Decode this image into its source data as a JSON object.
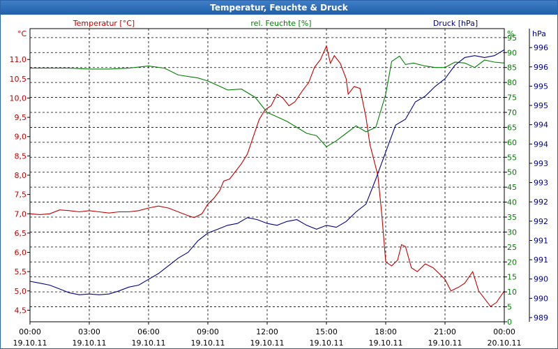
{
  "window": {
    "title": "Temperatur, Feuchte & Druck"
  },
  "chart_data": {
    "type": "line",
    "title": "Temperatur, Feuchte & Druck",
    "grid": true,
    "x_ticks": [
      {
        "time": "00:00",
        "date": "19.10.11"
      },
      {
        "time": "03:00",
        "date": "19.10.11"
      },
      {
        "time": "06:00",
        "date": "19.10.11"
      },
      {
        "time": "09:00",
        "date": "19.10.11"
      },
      {
        "time": "12:00",
        "date": "19.10.11"
      },
      {
        "time": "15:00",
        "date": "19.10.11"
      },
      {
        "time": "18:00",
        "date": "19.10.11"
      },
      {
        "time": "21:00",
        "date": "19.10.11"
      },
      {
        "time": "00:00",
        "date": "20.10.11"
      }
    ],
    "x_range_hours": [
      0,
      24
    ],
    "axes": {
      "temperature": {
        "unit": "°C",
        "label": "Temperatur [°C]",
        "range": [
          4.2,
          11.8
        ],
        "ticks": [
          "4,5",
          "5,0",
          "5,5",
          "6,0",
          "6,5",
          "7,0",
          "7,5",
          "8,0",
          "8,5",
          "9,0",
          "9,5",
          "10,0",
          "10,5",
          "11,0"
        ],
        "color": "#c00000"
      },
      "humidity": {
        "unit": "%",
        "label": "rel. Feuchte [%]",
        "range": [
          0,
          98
        ],
        "ticks": [
          "0",
          "5",
          "10",
          "15",
          "20",
          "25",
          "30",
          "35",
          "40",
          "45",
          "50",
          "55",
          "60",
          "65",
          "70",
          "75",
          "80",
          "85",
          "90",
          "95"
        ],
        "color": "#008000"
      },
      "pressure": {
        "unit": "hPa",
        "label": "Druck [hPa]",
        "range": [
          989.0,
          996.6
        ],
        "ticks": [
          "989",
          "990",
          "990",
          "991",
          "991",
          "992",
          "992",
          "993",
          "993",
          "994",
          "994",
          "995",
          "995",
          "996",
          "996"
        ],
        "color": "#00008b"
      }
    },
    "series": [
      {
        "name": "Temperatur [°C]",
        "axis": "temperature",
        "color": "#c00000",
        "points": [
          [
            0,
            7.0
          ],
          [
            0.5,
            6.98
          ],
          [
            1,
            7.0
          ],
          [
            1.5,
            7.1
          ],
          [
            2,
            7.08
          ],
          [
            2.5,
            7.05
          ],
          [
            3,
            7.08
          ],
          [
            3.5,
            7.05
          ],
          [
            4,
            7.02
          ],
          [
            4.5,
            7.05
          ],
          [
            5,
            7.05
          ],
          [
            5.5,
            7.08
          ],
          [
            6,
            7.15
          ],
          [
            6.5,
            7.2
          ],
          [
            7,
            7.15
          ],
          [
            7.5,
            7.05
          ],
          [
            8,
            6.95
          ],
          [
            8.3,
            6.9
          ],
          [
            8.7,
            7.0
          ],
          [
            9,
            7.25
          ],
          [
            9.3,
            7.4
          ],
          [
            9.6,
            7.6
          ],
          [
            9.8,
            7.85
          ],
          [
            10.1,
            7.9
          ],
          [
            10.4,
            8.1
          ],
          [
            10.7,
            8.3
          ],
          [
            11,
            8.55
          ],
          [
            11.3,
            9.0
          ],
          [
            11.6,
            9.45
          ],
          [
            11.9,
            9.7
          ],
          [
            12.2,
            9.8
          ],
          [
            12.5,
            10.1
          ],
          [
            12.8,
            10.0
          ],
          [
            13.1,
            9.8
          ],
          [
            13.4,
            9.9
          ],
          [
            13.8,
            10.2
          ],
          [
            14.1,
            10.4
          ],
          [
            14.4,
            10.8
          ],
          [
            14.7,
            11.0
          ],
          [
            15.0,
            11.35
          ],
          [
            15.2,
            10.9
          ],
          [
            15.4,
            11.1
          ],
          [
            15.7,
            10.9
          ],
          [
            16.0,
            10.5
          ],
          [
            16.1,
            10.1
          ],
          [
            16.4,
            10.3
          ],
          [
            16.7,
            10.25
          ],
          [
            17.0,
            9.5
          ],
          [
            17.2,
            8.8
          ],
          [
            17.4,
            8.4
          ],
          [
            17.6,
            8.0
          ],
          [
            17.8,
            7.0
          ],
          [
            18.0,
            5.75
          ],
          [
            18.3,
            5.65
          ],
          [
            18.6,
            5.8
          ],
          [
            18.8,
            6.2
          ],
          [
            19.0,
            6.15
          ],
          [
            19.3,
            5.6
          ],
          [
            19.6,
            5.5
          ],
          [
            20.0,
            5.7
          ],
          [
            20.4,
            5.6
          ],
          [
            20.7,
            5.45
          ],
          [
            21.0,
            5.3
          ],
          [
            21.3,
            5.0
          ],
          [
            21.7,
            5.1
          ],
          [
            22.0,
            5.2
          ],
          [
            22.4,
            5.5
          ],
          [
            22.7,
            5.0
          ],
          [
            23.0,
            4.8
          ],
          [
            23.3,
            4.6
          ],
          [
            23.6,
            4.7
          ],
          [
            24.0,
            5.0
          ]
        ]
      },
      {
        "name": "rel. Feuchte [%]",
        "axis": "humidity",
        "color": "#008000",
        "points": [
          [
            0,
            84.8
          ],
          [
            1,
            84.8
          ],
          [
            2,
            84.8
          ],
          [
            3,
            84.5
          ],
          [
            4,
            84.5
          ],
          [
            5,
            84.8
          ],
          [
            6,
            85.5
          ],
          [
            6.8,
            84.8
          ],
          [
            7.5,
            82.5
          ],
          [
            8.5,
            81.5
          ],
          [
            9,
            80.5
          ],
          [
            9.5,
            79
          ],
          [
            10,
            77.5
          ],
          [
            10.7,
            77.8
          ],
          [
            11.4,
            75
          ],
          [
            12,
            70
          ],
          [
            12.5,
            68.5
          ],
          [
            13,
            67
          ],
          [
            13.5,
            65
          ],
          [
            14,
            63
          ],
          [
            14.5,
            62.2
          ],
          [
            15,
            58.5
          ],
          [
            15.5,
            60.5
          ],
          [
            16,
            63
          ],
          [
            16.5,
            65.5
          ],
          [
            17,
            63.5
          ],
          [
            17.5,
            65
          ],
          [
            18.0,
            76
          ],
          [
            18.3,
            87
          ],
          [
            18.7,
            88.8
          ],
          [
            19.0,
            86
          ],
          [
            19.4,
            86.5
          ],
          [
            20.0,
            85.5
          ],
          [
            20.5,
            85
          ],
          [
            21.0,
            85
          ],
          [
            21.5,
            86.8
          ],
          [
            22,
            86.5
          ],
          [
            22.5,
            85
          ],
          [
            23,
            87.5
          ],
          [
            23.5,
            86.8
          ],
          [
            24,
            86.5
          ]
        ]
      },
      {
        "name": "Druck [hPa]",
        "axis": "pressure",
        "color": "#00008b",
        "points": [
          [
            0,
            990.05
          ],
          [
            0.5,
            990.0
          ],
          [
            1,
            989.95
          ],
          [
            1.5,
            989.85
          ],
          [
            2,
            989.75
          ],
          [
            2.5,
            989.7
          ],
          [
            3,
            989.72
          ],
          [
            3.5,
            989.7
          ],
          [
            4,
            989.72
          ],
          [
            4.5,
            989.8
          ],
          [
            5,
            989.9
          ],
          [
            5.5,
            989.95
          ],
          [
            6,
            990.1
          ],
          [
            6.5,
            990.25
          ],
          [
            7,
            990.45
          ],
          [
            7.5,
            990.65
          ],
          [
            8,
            990.8
          ],
          [
            8.5,
            991.1
          ],
          [
            9,
            991.3
          ],
          [
            9.5,
            991.4
          ],
          [
            10,
            991.5
          ],
          [
            10.5,
            991.55
          ],
          [
            11,
            991.7
          ],
          [
            11.5,
            991.65
          ],
          [
            12,
            991.55
          ],
          [
            12.5,
            991.5
          ],
          [
            13,
            991.6
          ],
          [
            13.5,
            991.65
          ],
          [
            14,
            991.5
          ],
          [
            14.5,
            991.4
          ],
          [
            15,
            991.5
          ],
          [
            15.5,
            991.45
          ],
          [
            16,
            991.6
          ],
          [
            16.5,
            991.85
          ],
          [
            17,
            992.05
          ],
          [
            17.5,
            992.7
          ],
          [
            18,
            993.4
          ],
          [
            18.5,
            994.1
          ],
          [
            19,
            994.25
          ],
          [
            19.5,
            994.7
          ],
          [
            20,
            994.85
          ],
          [
            20.5,
            995.1
          ],
          [
            21,
            995.3
          ],
          [
            21.5,
            995.65
          ],
          [
            22,
            995.85
          ],
          [
            22.5,
            995.9
          ],
          [
            23,
            995.85
          ],
          [
            23.5,
            995.9
          ],
          [
            24,
            996.05
          ]
        ]
      }
    ]
  }
}
